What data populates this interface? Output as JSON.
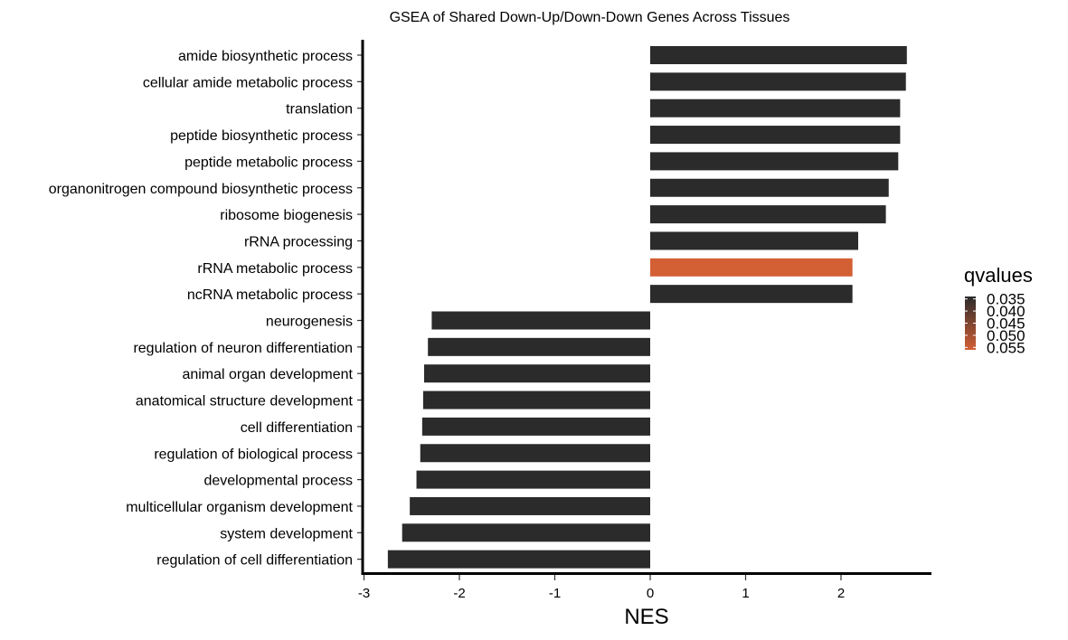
{
  "chart_data": {
    "type": "bar",
    "orientation": "horizontal",
    "title": "GSEA of Shared Down-Up/Down-Down Genes Across Tissues",
    "xlabel": "NES",
    "ylabel": "",
    "xlim": [
      -3.02,
      2.95
    ],
    "xticks": [
      -3,
      -2,
      -1,
      0,
      1,
      2
    ],
    "grid": false,
    "categories": [
      "amide biosynthetic process",
      "cellular amide metabolic process",
      "translation",
      "peptide biosynthetic process",
      "peptide metabolic process",
      "organonitrogen compound biosynthetic process",
      "ribosome biogenesis",
      "rRNA processing",
      "rRNA metabolic process",
      "ncRNA metabolic process",
      "neurogenesis",
      "regulation of neuron differentiation",
      "animal organ development",
      "anatomical structure development",
      "cell differentiation",
      "regulation of biological process",
      "developmental process",
      "multicellular organism development",
      "system development",
      "regulation of cell differentiation"
    ],
    "values": [
      2.69,
      2.68,
      2.62,
      2.62,
      2.6,
      2.5,
      2.47,
      2.18,
      2.12,
      2.12,
      -2.29,
      -2.33,
      -2.37,
      -2.38,
      -2.39,
      -2.41,
      -2.45,
      -2.52,
      -2.6,
      -2.75
    ],
    "qvalues": [
      0.034,
      0.034,
      0.034,
      0.034,
      0.034,
      0.034,
      0.034,
      0.034,
      0.056,
      0.034,
      0.034,
      0.034,
      0.034,
      0.034,
      0.034,
      0.034,
      0.034,
      0.034,
      0.034,
      0.034
    ],
    "legend": {
      "title": "qvalues",
      "position": "right",
      "labels": [
        "0.035",
        "0.040",
        "0.045",
        "0.050",
        "0.055"
      ],
      "range": [
        0.034,
        0.056
      ]
    },
    "colors": {
      "low": "#2b2b2b",
      "high": "#d35f35"
    }
  }
}
